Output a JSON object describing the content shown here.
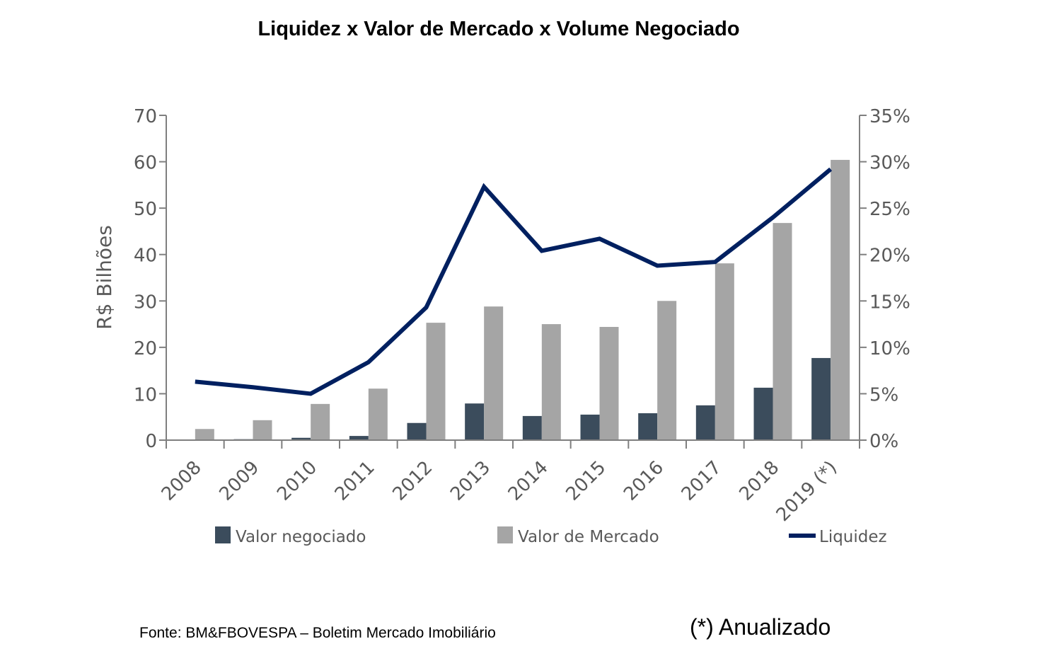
{
  "chart_data": {
    "type": "bar",
    "title": "Liquidez x Valor de Mercado x Volume Negociado",
    "ylabel": "R$ Bilhões",
    "ylabel_right": "",
    "xlabel": "",
    "ylim": [
      0,
      70
    ],
    "y_ticks": [
      "0",
      "10",
      "20",
      "30",
      "40",
      "50",
      "60",
      "70"
    ],
    "ylim_right": [
      0,
      35
    ],
    "y_right_ticks": [
      "0%",
      "5%",
      "10%",
      "15%",
      "20%",
      "25%",
      "30%",
      "35%"
    ],
    "grid": false,
    "legend_position": "bottom",
    "categories": [
      "2008",
      "2009",
      "2010",
      "2011",
      "2012",
      "2013",
      "2014",
      "2015",
      "2016",
      "2017",
      "2018",
      "2019 (*)"
    ],
    "series": [
      {
        "name": "Valor negociado",
        "type": "bar",
        "axis": "left",
        "color": "#3b4c5c",
        "values": [
          0.1,
          0.2,
          0.5,
          0.9,
          3.7,
          7.9,
          5.2,
          5.5,
          5.8,
          7.5,
          11.3,
          17.7
        ]
      },
      {
        "name": "Valor de Mercado",
        "type": "bar",
        "axis": "left",
        "color": "#a5a5a5",
        "values": [
          2.4,
          4.3,
          7.8,
          11.1,
          25.3,
          28.8,
          25.0,
          24.4,
          30.0,
          38.1,
          46.8,
          60.4
        ]
      },
      {
        "name": "Liquidez",
        "type": "line",
        "axis": "right",
        "unit": "%",
        "color": "#002060",
        "values": [
          6.3,
          5.7,
          5.0,
          8.4,
          14.3,
          27.3,
          20.4,
          21.7,
          18.8,
          19.2,
          24.0,
          29.2
        ]
      }
    ]
  },
  "footer": {
    "source": "Fonte: BM&FBOVESPA – Boletim Mercado Imobiliário",
    "note": "(*) Anualizado"
  },
  "colors": {
    "axis": "#7f7f7f",
    "text": "#595959"
  }
}
